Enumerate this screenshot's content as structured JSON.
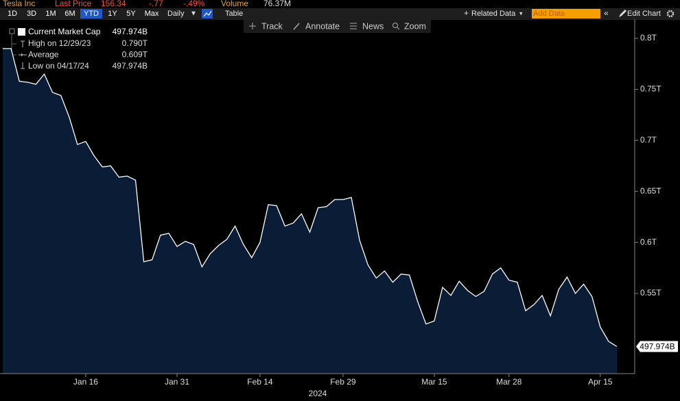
{
  "quote": {
    "name": "Tesla Inc",
    "last_price_label": "Last Price",
    "last_price": "156.34",
    "change": "-.77",
    "change_pct": "-.49%",
    "volume_label": "Volume",
    "volume": "76.37M"
  },
  "toolbar": {
    "periods": [
      "1D",
      "3D",
      "1M",
      "6M",
      "YTD",
      "1Y",
      "5Y",
      "Max"
    ],
    "active_period_index": 4,
    "frequency": "Daily",
    "table": "Table",
    "related_data": "Related Data",
    "add_data_placeholder": "Add Data",
    "edit_chart": "Edit Chart"
  },
  "chart_tools": [
    "Track",
    "Annotate",
    "News",
    "Zoom"
  ],
  "chart_data": {
    "type": "area",
    "x_axis_label": "2024",
    "categories": [
      null,
      null,
      null,
      null,
      null,
      null,
      null,
      null,
      null,
      null,
      "Jan 16",
      null,
      null,
      null,
      null,
      null,
      null,
      null,
      null,
      null,
      null,
      "Jan 31",
      null,
      null,
      null,
      null,
      null,
      null,
      null,
      null,
      null,
      "Feb 14",
      null,
      null,
      null,
      null,
      null,
      null,
      null,
      null,
      null,
      "Feb 29",
      null,
      null,
      null,
      null,
      null,
      null,
      null,
      null,
      null,
      null,
      "Mar 15",
      null,
      null,
      null,
      null,
      null,
      null,
      null,
      null,
      "Mar 28",
      null,
      null,
      null,
      null,
      null,
      null,
      null,
      null,
      null,
      null,
      "Apr 15",
      null,
      null
    ],
    "series": [
      {
        "name": "Current Market Cap",
        "color": "#ffffff",
        "fill": "#0b1d36",
        "values": [
          0.79,
          0.79,
          0.758,
          0.757,
          0.755,
          0.765,
          0.747,
          0.744,
          0.723,
          0.696,
          0.699,
          0.685,
          0.674,
          0.675,
          0.664,
          0.665,
          0.661,
          0.581,
          0.583,
          0.607,
          0.609,
          0.596,
          0.601,
          0.598,
          0.576,
          0.589,
          0.597,
          0.603,
          0.616,
          0.598,
          0.585,
          0.6,
          0.637,
          0.636,
          0.616,
          0.619,
          0.628,
          0.61,
          0.634,
          0.635,
          0.642,
          0.642,
          0.644,
          0.602,
          0.578,
          0.565,
          0.572,
          0.561,
          0.569,
          0.568,
          0.542,
          0.52,
          0.523,
          0.556,
          0.548,
          0.562,
          0.553,
          0.547,
          0.552,
          0.569,
          0.575,
          0.563,
          0.561,
          0.533,
          0.539,
          0.548,
          0.528,
          0.554,
          0.566,
          0.55,
          0.559,
          0.547,
          0.517,
          0.503,
          0.497974
        ],
        "value_labels": [
          null,
          null,
          null,
          null,
          null,
          null,
          null,
          null,
          null,
          null,
          null,
          null,
          null,
          null,
          null,
          null,
          null,
          null,
          null,
          null,
          null,
          null,
          null,
          null,
          null,
          null,
          null,
          null,
          null,
          null,
          null,
          null,
          null,
          null,
          null,
          null,
          null,
          null,
          null,
          null,
          null,
          null,
          null,
          null,
          null,
          null,
          null,
          null,
          null,
          null,
          null,
          null,
          null,
          null,
          null,
          null,
          null,
          null,
          null,
          null,
          null,
          null,
          null,
          null,
          null,
          null,
          null,
          null,
          null,
          null,
          null,
          null,
          null,
          null,
          "497.974B"
        ]
      }
    ],
    "summary": [
      {
        "label": "High on 12/29/23",
        "value": "0.790T"
      },
      {
        "label": "Average",
        "value": "0.609T"
      },
      {
        "label": "Low on 04/17/24",
        "value": "497.974B"
      }
    ],
    "ylim": [
      0.4714,
      0.8188
    ],
    "yticks": [
      {
        "value": 0.55,
        "label": "0.55T"
      },
      {
        "value": 0.6,
        "label": "0.6T"
      },
      {
        "value": 0.65,
        "label": "0.65T"
      },
      {
        "value": 0.7,
        "label": "0.7T"
      },
      {
        "value": 0.75,
        "label": "0.75T"
      },
      {
        "value": 0.8,
        "label": "0.8T"
      }
    ],
    "background": "#000000"
  }
}
